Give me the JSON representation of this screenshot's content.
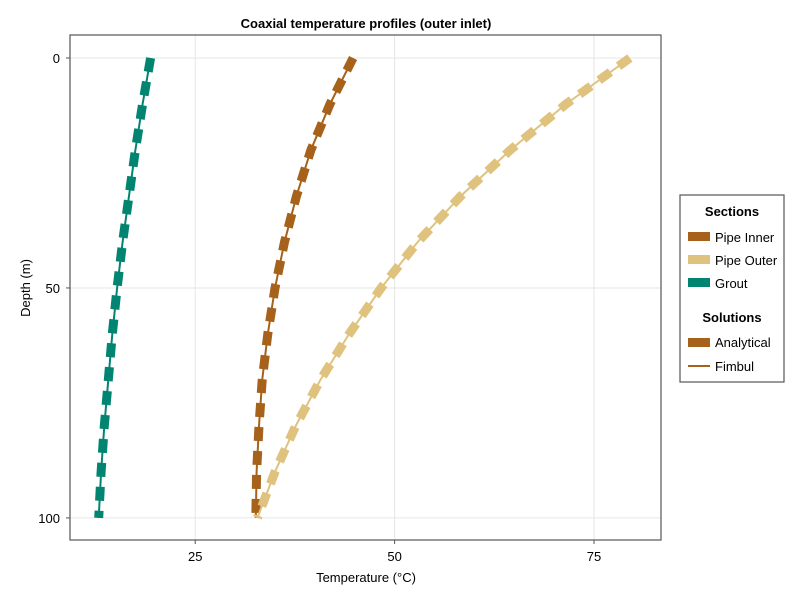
{
  "chart_data": {
    "type": "line",
    "title": "Coaxial temperature profiles (outer inlet)",
    "xlabel": "Temperature (°C)",
    "ylabel": "Depth (m)",
    "xlim": [
      9.3,
      83.4
    ],
    "ylim": [
      -5,
      104.8
    ],
    "y_reversed": true,
    "xticks": [
      25,
      50,
      75
    ],
    "yticks": [
      0,
      50,
      100
    ],
    "grid": true,
    "depth": [
      0,
      10,
      20,
      30,
      40,
      50,
      60,
      70,
      80,
      90,
      100
    ],
    "sections": [
      {
        "name": "Pipe Inner",
        "color": "#a6611a",
        "values": [
          44.8,
          41.9,
          39.5,
          37.7,
          36.2,
          35.0,
          34.1,
          33.4,
          33.0,
          32.7,
          32.6
        ]
      },
      {
        "name": "Pipe Outer",
        "color": "#dfc27d",
        "values": [
          79.5,
          71.5,
          64.5,
          58.3,
          52.9,
          48.3,
          44.3,
          40.7,
          37.6,
          35.0,
          32.8
        ]
      },
      {
        "name": "Grout",
        "color": "#018571",
        "values": [
          19.4,
          18.4,
          17.5,
          16.7,
          15.9,
          15.2,
          14.6,
          14.1,
          13.6,
          13.2,
          12.9
        ]
      }
    ],
    "legend": {
      "placement": "right",
      "sections_title": "Sections",
      "solutions_title": "Solutions",
      "solutions": [
        {
          "name": "Analytical",
          "style": "thick-dashed"
        },
        {
          "name": "Fimbul",
          "style": "thin-solid"
        }
      ]
    }
  }
}
